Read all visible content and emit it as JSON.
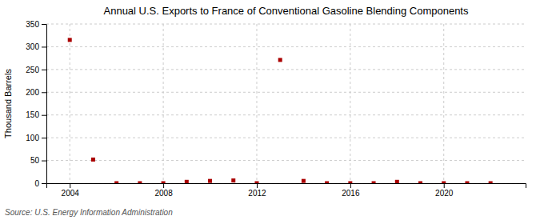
{
  "chart_data": {
    "type": "scatter",
    "title": "Annual U.S. Exports to France of Conventional Gasoline Blending Components",
    "ylabel": "Thousand Barrels",
    "source": "Source: U.S. Energy Information Administration",
    "x": [
      2004,
      2005,
      2006,
      2007,
      2008,
      2009,
      2010,
      2011,
      2012,
      2013,
      2014,
      2015,
      2016,
      2017,
      2018,
      2019,
      2020,
      2021,
      2022
    ],
    "values": [
      315,
      52,
      0,
      0,
      0,
      3,
      5,
      6,
      0,
      271,
      5,
      0,
      0,
      0,
      3,
      0,
      0,
      0,
      0
    ],
    "color": "#aa0000",
    "marker": "square",
    "xlim": [
      2003.0,
      2023.5
    ],
    "xticks": [
      2004,
      2008,
      2012,
      2016,
      2020
    ],
    "ylim": [
      0,
      350
    ],
    "yticks": [
      0,
      50,
      100,
      150,
      200,
      250,
      300,
      350
    ],
    "grid": true
  }
}
